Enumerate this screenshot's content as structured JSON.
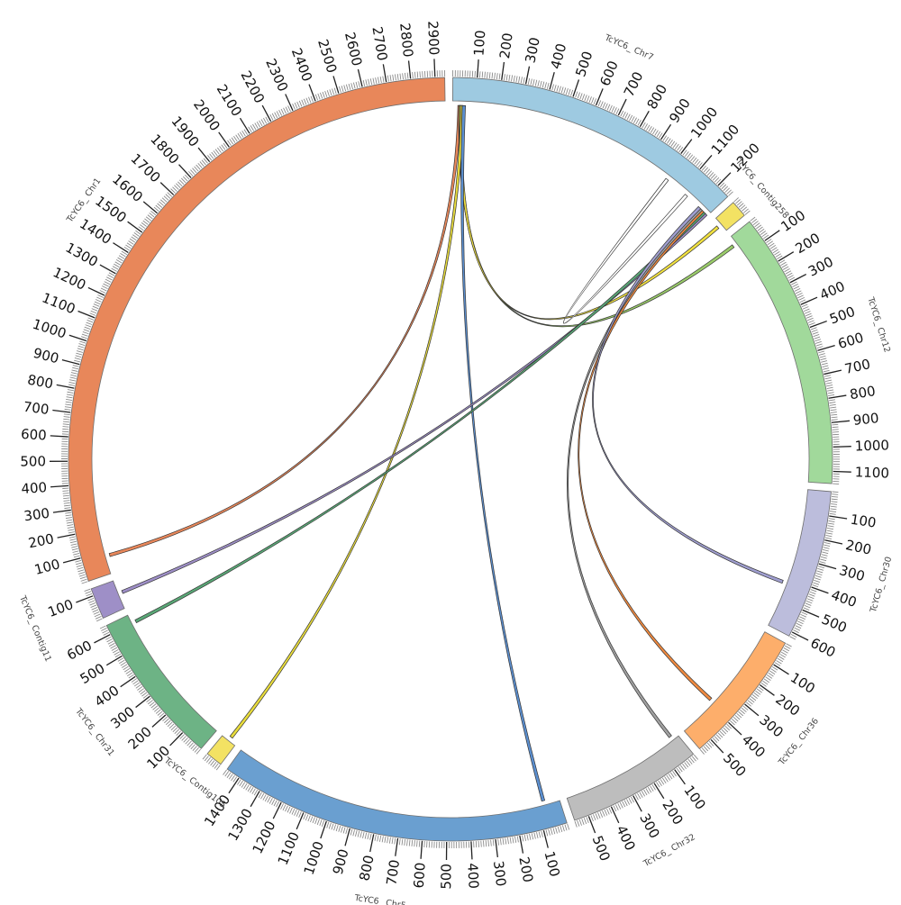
{
  "chart_data": {
    "type": "chord",
    "segments": [
      {
        "id": "chr7",
        "label": "TcYC6_ Chr7",
        "length": 1260,
        "color": "#9ecae1",
        "ticks": [
          100,
          200,
          300,
          400,
          500,
          600,
          700,
          800,
          900,
          1000,
          1100,
          1200
        ]
      },
      {
        "id": "contig258",
        "label": "TcYC6_ Contig258",
        "length": 70,
        "color": "#f3e263",
        "ticks": []
      },
      {
        "id": "chr12",
        "label": "TcYC6_ Chr12",
        "length": 1150,
        "color": "#a1d99b",
        "ticks": [
          100,
          200,
          300,
          400,
          500,
          600,
          700,
          800,
          900,
          1000,
          1100
        ]
      },
      {
        "id": "chr30",
        "label": "TcYC6_ Chr30",
        "length": 620,
        "color": "#bcbddc",
        "ticks": [
          100,
          200,
          300,
          400,
          500,
          600
        ]
      },
      {
        "id": "chr36",
        "label": "TcYC6_ Chr36",
        "length": 560,
        "color": "#fdae6b",
        "ticks": [
          100,
          200,
          300,
          400,
          500
        ]
      },
      {
        "id": "chr32",
        "label": "TcYC6_ Chr32",
        "length": 560,
        "color": "#bdbdbd",
        "ticks": [
          100,
          200,
          300,
          400,
          500
        ]
      },
      {
        "id": "chr5",
        "label": "TcYC6_ Chr5",
        "length": 1460,
        "color": "#6a9fd0",
        "ticks": [
          100,
          200,
          300,
          400,
          500,
          600,
          700,
          800,
          900,
          1000,
          1100,
          1200,
          1300,
          1400
        ]
      },
      {
        "id": "contig105",
        "label": "TcYC6_ Contig105",
        "length": 70,
        "color": "#f3e263",
        "ticks": []
      },
      {
        "id": "chr31",
        "label": "TcYC6_ Chr31",
        "length": 640,
        "color": "#6db385",
        "ticks": [
          100,
          200,
          300,
          400,
          500,
          600
        ]
      },
      {
        "id": "contig11",
        "label": "TcYC6_ Contig11",
        "length": 130,
        "color": "#9e8fc7",
        "ticks": [
          100
        ]
      },
      {
        "id": "chr1",
        "label": "TcYC6_ Chr1",
        "length": 2940,
        "color": "#e8875a",
        "ticks": [
          100,
          200,
          300,
          400,
          500,
          600,
          700,
          800,
          900,
          1000,
          1100,
          1200,
          1300,
          1400,
          1500,
          1600,
          1700,
          1800,
          1900,
          2000,
          2100,
          2200,
          2300,
          2400,
          2500,
          2600,
          2700,
          2800,
          2900
        ]
      }
    ],
    "links": [
      {
        "from": "chr7",
        "from_pos": 30,
        "to": "chr1",
        "to_pos": 80,
        "color": "#e8875a"
      },
      {
        "from": "chr7",
        "from_pos": 35,
        "to": "chr12",
        "to_pos": 40,
        "color": "#9acb6a"
      },
      {
        "from": "chr7",
        "from_pos": 38,
        "to": "contig258",
        "to_pos": 35,
        "color": "#f0e040"
      },
      {
        "from": "chr7",
        "from_pos": 45,
        "to": "contig105",
        "to_pos": 35,
        "color": "#e8dc3c"
      },
      {
        "from": "chr7",
        "from_pos": 50,
        "to": "chr5",
        "to_pos": 70,
        "color": "#5b8fd0"
      },
      {
        "from": "chr7",
        "from_pos": 1020,
        "to": "chr7",
        "to_pos": 1130,
        "color": "#ffffff"
      },
      {
        "from": "chr7",
        "from_pos": 1250,
        "to": "contig11",
        "to_pos": 70,
        "color": "#9e8fc7"
      },
      {
        "from": "chr7",
        "from_pos": 1240,
        "to": "chr31",
        "to_pos": 600,
        "color": "#5aa877"
      },
      {
        "from": "chr7",
        "from_pos": 1230,
        "to": "chr36",
        "to_pos": 380,
        "color": "#f08a40"
      },
      {
        "from": "chr7",
        "from_pos": 1220,
        "to": "chr32",
        "to_pos": 30,
        "color": "#a0a0a0"
      },
      {
        "from": "chr7",
        "from_pos": 1210,
        "to": "chr30",
        "to_pos": 420,
        "color": "#a09fd0"
      }
    ]
  }
}
